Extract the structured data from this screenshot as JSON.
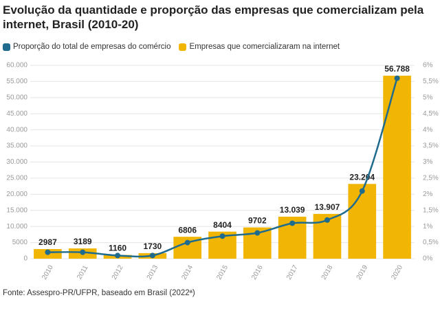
{
  "chart_data": {
    "type": "combo",
    "title": "Evolução da quantidade e proporção das empresas que comercializam pela internet, Brasil (2010-20)",
    "source": "Fonte: Assespro-PR/UFPR, baseado em Brasil (2022ª)",
    "categories": [
      "2010",
      "2011",
      "2012",
      "2013",
      "2014",
      "2015",
      "2016",
      "2017",
      "2018",
      "2019",
      "2020"
    ],
    "series": [
      {
        "name": "Proporção do total de empresas do comércio",
        "type": "line",
        "axis": "y2",
        "color": "#1f6b8e",
        "values": [
          0.2,
          0.2,
          0.1,
          0.1,
          0.5,
          0.7,
          0.8,
          1.1,
          1.2,
          2.1,
          5.6
        ]
      },
      {
        "name": "Empresas que comercializaram na internet",
        "type": "bar",
        "color": "#f0b505",
        "values": [
          2987,
          3189,
          1160,
          1730,
          6806,
          8404,
          9702,
          13039,
          13907,
          23204,
          56788
        ],
        "value_labels": [
          "2987",
          "3189",
          "1160",
          "1730",
          "6806",
          "8404",
          "9702",
          "13.039",
          "13.907",
          "23.204",
          "56.788"
        ]
      }
    ],
    "ylim": [
      0,
      60000
    ],
    "yticks": [
      0,
      5000,
      {
        "value": 10000,
        "label": "10.000"
      },
      {
        "value": 15000,
        "label": "15.000"
      },
      {
        "value": 20000,
        "label": "20.000"
      },
      {
        "value": 25000,
        "label": "25.000"
      },
      {
        "value": 30000,
        "label": "30.000"
      },
      {
        "value": 35000,
        "label": "35.000"
      },
      {
        "value": 40000,
        "label": "40.000"
      },
      {
        "value": 45000,
        "label": "45.000"
      },
      {
        "value": 50000,
        "label": "50.000"
      },
      {
        "value": 55000,
        "label": "55.000"
      },
      {
        "value": 60000,
        "label": "60.000"
      }
    ],
    "y2lim": [
      0,
      6
    ],
    "y2ticks": [
      {
        "value": 0,
        "label": "0%"
      },
      {
        "value": 0.5,
        "label": "0,5%"
      },
      {
        "value": 1,
        "label": "1%"
      },
      {
        "value": 1.5,
        "label": "1,5%"
      },
      {
        "value": 2,
        "label": "2%"
      },
      {
        "value": 2.5,
        "label": "2,5%"
      },
      {
        "value": 3,
        "label": "3%"
      },
      {
        "value": 3.5,
        "label": "3,5%"
      },
      {
        "value": 4,
        "label": "4%"
      },
      {
        "value": 4.5,
        "label": "4,5%"
      },
      {
        "value": 5,
        "label": "5%"
      },
      {
        "value": 5.5,
        "label": "5,5%"
      },
      {
        "value": 6,
        "label": "6%"
      }
    ],
    "grid": true
  }
}
